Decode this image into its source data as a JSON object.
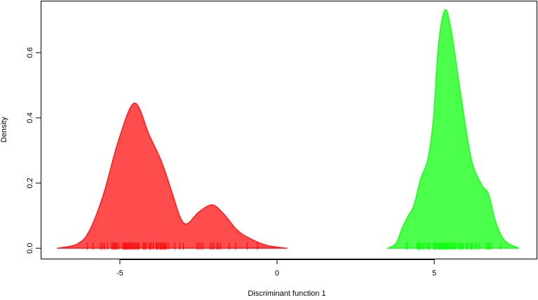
{
  "chart_data": {
    "type": "area",
    "title": "",
    "xlabel": "Discriminant function 1",
    "ylabel": "Density",
    "xlim": [
      -7.52,
      8.28
    ],
    "ylim": [
      -0.034,
      0.757
    ],
    "xticks": [
      -5,
      0,
      5
    ],
    "xtick_labels": [
      "-5",
      "0",
      "5"
    ],
    "yticks": [
      0.0,
      0.2,
      0.4,
      0.6
    ],
    "ytick_labels": [
      "0.0",
      "0.2",
      "0.4",
      "0.6"
    ],
    "grid": false,
    "legend": "none",
    "series": [
      {
        "color": "#ff0000",
        "fill": "#ff4c4c",
        "x": [
          -7.0,
          -6.36,
          -5.98,
          -5.54,
          -5.02,
          -4.53,
          -4.06,
          -3.68,
          -3.35,
          -3.08,
          -2.86,
          -2.5,
          -2.08,
          -1.74,
          -1.29,
          -0.94,
          -0.33,
          0.33
        ],
        "y": [
          0,
          0.013,
          0.052,
          0.16,
          0.338,
          0.445,
          0.346,
          0.267,
          0.174,
          0.095,
          0.075,
          0.11,
          0.133,
          0.11,
          0.058,
          0.034,
          0.009,
          0
        ],
        "rug": [
          -6.04,
          -5.86,
          -5.62,
          -5.56,
          -5.5,
          -5.4,
          -5.25,
          -5.21,
          -5.17,
          -5.14,
          -5.1,
          -5.04,
          -4.91,
          -4.87,
          -4.84,
          -4.81,
          -4.78,
          -4.75,
          -4.71,
          -4.69,
          -4.65,
          -4.61,
          -4.58,
          -4.54,
          -4.5,
          -4.46,
          -4.43,
          -4.39,
          -4.26,
          -4.23,
          -4.19,
          -4.15,
          -4.07,
          -4.04,
          -4.0,
          -3.94,
          -3.85,
          -3.82,
          -3.78,
          -3.73,
          -3.7,
          -3.67,
          -3.63,
          -3.59,
          -3.56,
          -3.52,
          -3.46,
          -3.25,
          -3.09,
          -2.98,
          -2.55,
          -2.49,
          -2.43,
          -2.36,
          -2.12,
          -2.06,
          -2.01,
          -1.91,
          -1.86,
          -1.79,
          -1.52,
          -1.32,
          -0.95,
          -0.62
        ]
      },
      {
        "color": "#00ff00",
        "fill": "#4cff4c",
        "x": [
          3.53,
          3.79,
          3.98,
          4.17,
          4.35,
          4.58,
          4.8,
          4.98,
          5.13,
          5.34,
          5.54,
          5.84,
          6.18,
          6.51,
          6.73,
          6.96,
          7.25,
          7.7
        ],
        "y": [
          0,
          0.016,
          0.062,
          0.099,
          0.131,
          0.216,
          0.274,
          0.403,
          0.618,
          0.73,
          0.668,
          0.475,
          0.274,
          0.195,
          0.166,
          0.08,
          0.023,
          0
        ],
        "rug": [
          4.11,
          4.15,
          4.45,
          4.49,
          4.52,
          4.55,
          4.58,
          4.65,
          4.69,
          4.76,
          4.82,
          4.85,
          4.97,
          5.01,
          5.04,
          5.08,
          5.12,
          5.16,
          5.19,
          5.23,
          5.26,
          5.29,
          5.32,
          5.35,
          5.38,
          5.41,
          5.44,
          5.47,
          5.51,
          5.54,
          5.58,
          5.62,
          5.65,
          5.69,
          5.77,
          5.8,
          5.84,
          5.88,
          5.92,
          6.03,
          6.06,
          6.14,
          6.18,
          6.21,
          6.29,
          6.35,
          6.42,
          6.65,
          6.7,
          6.73,
          6.77,
          6.81,
          7.11
        ]
      }
    ]
  }
}
